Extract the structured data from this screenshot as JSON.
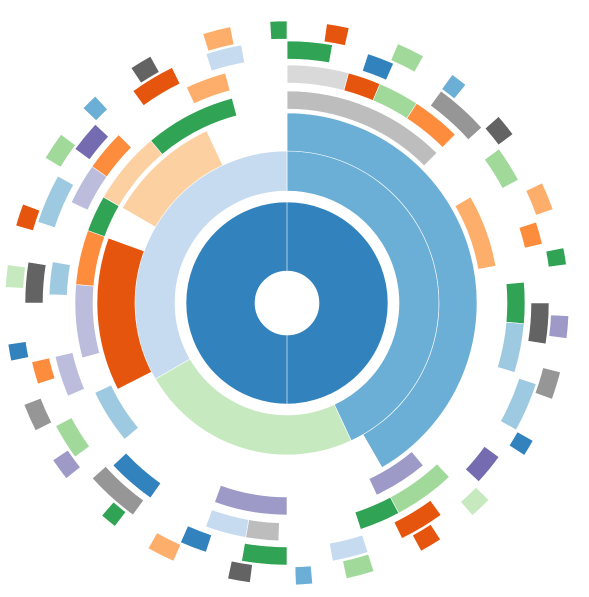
{
  "chart_data": {
    "type": "sunburst",
    "rings": [
      {
        "segments": [
          {
            "value": 360,
            "color": "#3182bd"
          }
        ]
      },
      {
        "segments": [
          {
            "value": 155,
            "color": "#6baed6"
          },
          {
            "value": 85,
            "color": "#c7e9c0"
          },
          {
            "value": 120,
            "color": "#c6dbef"
          }
        ]
      },
      {
        "segments": [
          {
            "value": 150,
            "color": "#6baed6"
          },
          {
            "value": 93,
            "color": "#ffffff"
          },
          {
            "value": 47,
            "color": "#e6550d"
          },
          {
            "value": 10,
            "color": "#ffffff"
          },
          {
            "value": 35,
            "color": "#fdd0a2"
          },
          {
            "value": 25,
            "color": "#ffffff"
          }
        ]
      },
      {
        "segments": [
          {
            "value": 45,
            "color": "#bdbdbd"
          },
          {
            "value": 15,
            "color": "#ffffff"
          },
          {
            "value": 20,
            "color": "#fdae6b"
          },
          {
            "value": 60,
            "color": "#ffffff"
          },
          {
            "value": 15,
            "color": "#9e9ac8"
          },
          {
            "value": 25,
            "color": "#ffffff"
          },
          {
            "value": 20,
            "color": "#9e9ac8"
          },
          {
            "value": 30,
            "color": "#ffffff"
          },
          {
            "value": 15,
            "color": "#9ecae1"
          },
          {
            "value": 10,
            "color": "#ffffff"
          },
          {
            "value": 20,
            "color": "#bcbddc"
          },
          {
            "value": 15,
            "color": "#fd8d3c"
          },
          {
            "value": 10,
            "color": "#31a354"
          },
          {
            "value": 20,
            "color": "#fdd0a2"
          },
          {
            "value": 25,
            "color": "#31a354"
          },
          {
            "value": 15,
            "color": "#ffffff"
          }
        ]
      },
      {
        "segments": [
          {
            "value": 15,
            "color": "#d9d9d9"
          },
          {
            "value": 8,
            "color": "#e6550d"
          },
          {
            "value": 10,
            "color": "#a1d99b"
          },
          {
            "value": 12,
            "color": "#fd8d3c"
          },
          {
            "value": 40,
            "color": "#ffffff"
          },
          {
            "value": 10,
            "color": "#31a354"
          },
          {
            "value": 12,
            "color": "#9ecae1"
          },
          {
            "value": 30,
            "color": "#ffffff"
          },
          {
            "value": 15,
            "color": "#a1d99b"
          },
          {
            "value": 10,
            "color": "#31a354"
          },
          {
            "value": 20,
            "color": "#ffffff"
          },
          {
            "value": 8,
            "color": "#bdbdbd"
          },
          {
            "value": 10,
            "color": "#c6dbef"
          },
          {
            "value": 15,
            "color": "#ffffff"
          },
          {
            "value": 12,
            "color": "#3182bd"
          },
          {
            "value": 20,
            "color": "#ffffff"
          },
          {
            "value": 10,
            "color": "#bcbddc"
          },
          {
            "value": 15,
            "color": "#ffffff"
          },
          {
            "value": 8,
            "color": "#9ecae1"
          },
          {
            "value": 15,
            "color": "#ffffff"
          },
          {
            "value": 10,
            "color": "#bcbddc"
          },
          {
            "value": 10,
            "color": "#fd8d3c"
          },
          {
            "value": 20,
            "color": "#ffffff"
          },
          {
            "value": 10,
            "color": "#fdae6b"
          },
          {
            "value": 15,
            "color": "#ffffff"
          }
        ]
      },
      {
        "segments": [
          {
            "value": 10,
            "color": "#31a354"
          },
          {
            "value": 8,
            "color": "#ffffff"
          },
          {
            "value": 6,
            "color": "#3182bd"
          },
          {
            "value": 12,
            "color": "#ffffff"
          },
          {
            "value": 12,
            "color": "#969696"
          },
          {
            "value": 6,
            "color": "#ffffff"
          },
          {
            "value": 8,
            "color": "#a1d99b"
          },
          {
            "value": 10,
            "color": "#ffffff"
          },
          {
            "value": 5,
            "color": "#fd8d3c"
          },
          {
            "value": 13,
            "color": "#ffffff"
          },
          {
            "value": 9,
            "color": "#636363"
          },
          {
            "value": 9,
            "color": "#ffffff"
          },
          {
            "value": 11,
            "color": "#9ecae1"
          },
          {
            "value": 7,
            "color": "#ffffff"
          },
          {
            "value": 7,
            "color": "#756bb1"
          },
          {
            "value": 11,
            "color": "#ffffff"
          },
          {
            "value": 10,
            "color": "#e6550d"
          },
          {
            "value": 8,
            "color": "#ffffff"
          },
          {
            "value": 8,
            "color": "#c6dbef"
          },
          {
            "value": 10,
            "color": "#ffffff"
          },
          {
            "value": 10,
            "color": "#31a354"
          },
          {
            "value": 8,
            "color": "#ffffff"
          },
          {
            "value": 6,
            "color": "#3182bd"
          },
          {
            "value": 12,
            "color": "#ffffff"
          },
          {
            "value": 12,
            "color": "#969696"
          },
          {
            "value": 6,
            "color": "#ffffff"
          },
          {
            "value": 8,
            "color": "#a1d99b"
          },
          {
            "value": 10,
            "color": "#ffffff"
          },
          {
            "value": 5,
            "color": "#fd8d3c"
          },
          {
            "value": 13,
            "color": "#ffffff"
          },
          {
            "value": 9,
            "color": "#636363"
          },
          {
            "value": 9,
            "color": "#ffffff"
          },
          {
            "value": 11,
            "color": "#9ecae1"
          },
          {
            "value": 7,
            "color": "#ffffff"
          },
          {
            "value": 7,
            "color": "#756bb1"
          },
          {
            "value": 11,
            "color": "#ffffff"
          },
          {
            "value": 10,
            "color": "#e6550d"
          },
          {
            "value": 8,
            "color": "#ffffff"
          },
          {
            "value": 8,
            "color": "#c6dbef"
          },
          {
            "value": 10,
            "color": "#ffffff"
          }
        ]
      },
      {
        "segments": [
          {
            "value": 7,
            "color": "#ffffff"
          },
          {
            "value": 4,
            "color": "#e6550d"
          },
          {
            "value": 9,
            "color": "#ffffff"
          },
          {
            "value": 5,
            "color": "#a1d99b"
          },
          {
            "value": 6,
            "color": "#ffffff"
          },
          {
            "value": 3,
            "color": "#6baed6"
          },
          {
            "value": 8,
            "color": "#ffffff"
          },
          {
            "value": 4,
            "color": "#636363"
          },
          {
            "value": 10,
            "color": "#ffffff"
          },
          {
            "value": 5,
            "color": "#fdae6b"
          },
          {
            "value": 7,
            "color": "#ffffff"
          },
          {
            "value": 3,
            "color": "#31a354"
          },
          {
            "value": 9,
            "color": "#ffffff"
          },
          {
            "value": 4,
            "color": "#9e9ac8"
          },
          {
            "value": 6,
            "color": "#ffffff"
          },
          {
            "value": 5,
            "color": "#969696"
          },
          {
            "value": 8,
            "color": "#ffffff"
          },
          {
            "value": 3,
            "color": "#3182bd"
          },
          {
            "value": 10,
            "color": "#ffffff"
          },
          {
            "value": 4,
            "color": "#c7e9c0"
          },
          {
            "value": 7,
            "color": "#ffffff"
          },
          {
            "value": 4,
            "color": "#e6550d"
          },
          {
            "value": 9,
            "color": "#ffffff"
          },
          {
            "value": 5,
            "color": "#a1d99b"
          },
          {
            "value": 6,
            "color": "#ffffff"
          },
          {
            "value": 3,
            "color": "#6baed6"
          },
          {
            "value": 8,
            "color": "#ffffff"
          },
          {
            "value": 4,
            "color": "#636363"
          },
          {
            "value": 10,
            "color": "#ffffff"
          },
          {
            "value": 5,
            "color": "#fdae6b"
          },
          {
            "value": 7,
            "color": "#ffffff"
          },
          {
            "value": 3,
            "color": "#31a354"
          },
          {
            "value": 9,
            "color": "#ffffff"
          },
          {
            "value": 4,
            "color": "#9e9ac8"
          },
          {
            "value": 6,
            "color": "#ffffff"
          },
          {
            "value": 5,
            "color": "#969696"
          },
          {
            "value": 8,
            "color": "#ffffff"
          },
          {
            "value": 3,
            "color": "#3182bd"
          },
          {
            "value": 10,
            "color": "#ffffff"
          },
          {
            "value": 4,
            "color": "#c7e9c0"
          },
          {
            "value": 7,
            "color": "#ffffff"
          },
          {
            "value": 4,
            "color": "#e6550d"
          },
          {
            "value": 9,
            "color": "#ffffff"
          },
          {
            "value": 5,
            "color": "#a1d99b"
          },
          {
            "value": 6,
            "color": "#ffffff"
          },
          {
            "value": 3,
            "color": "#6baed6"
          },
          {
            "value": 8,
            "color": "#ffffff"
          },
          {
            "value": 4,
            "color": "#636363"
          },
          {
            "value": 10,
            "color": "#ffffff"
          },
          {
            "value": 5,
            "color": "#fdae6b"
          },
          {
            "value": 7,
            "color": "#ffffff"
          },
          {
            "value": 3,
            "color": "#31a354"
          }
        ]
      }
    ]
  }
}
